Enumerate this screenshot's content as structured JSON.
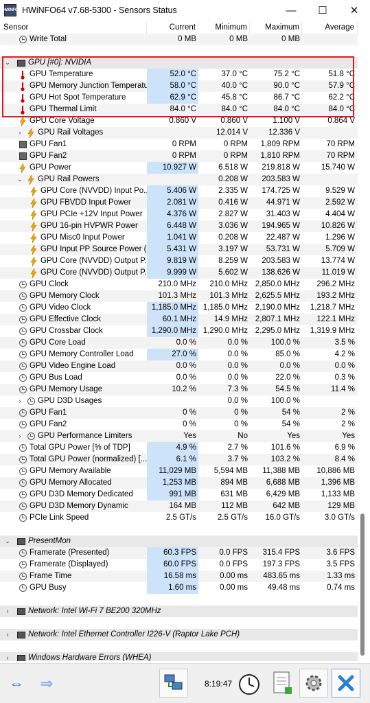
{
  "window": {
    "title": "HWiNFO64 v7.68-5300 - Sensors Status",
    "app_icon_text": "HWiNFO",
    "minimize": "—",
    "maximize": "☐",
    "close": "✕"
  },
  "columns": [
    "Sensor",
    "Current",
    "Minimum",
    "Maximum",
    "Average"
  ],
  "rows": [
    {
      "type": "sensor",
      "indent": 1,
      "icon": "clock",
      "name": "Write Total",
      "cur": "0 MB",
      "min": "0 MB",
      "max": "0 MB",
      "avg": ""
    },
    {
      "type": "blank"
    },
    {
      "type": "group",
      "expanded": true,
      "name": "GPU [#0]: NVIDIA"
    },
    {
      "type": "sensor",
      "indent": 1,
      "icon": "therm",
      "name": "GPU Temperature",
      "cur": "52.0 °C",
      "min": "37.0 °C",
      "max": "75.2 °C",
      "avg": "51.8 °C",
      "hl": true
    },
    {
      "type": "sensor",
      "indent": 1,
      "icon": "therm",
      "name": "GPU Memory Junction Temperature",
      "cur": "58.0 °C",
      "min": "40.0 °C",
      "max": "90.0 °C",
      "avg": "57.9 °C",
      "hl": true
    },
    {
      "type": "sensor",
      "indent": 1,
      "icon": "therm",
      "name": "GPU Hot Spot Temperature",
      "cur": "62.9 °C",
      "min": "45.8 °C",
      "max": "86.7 °C",
      "avg": "62.2 °C",
      "hl": true
    },
    {
      "type": "sensor",
      "indent": 1,
      "icon": "therm",
      "name": "GPU Thermal Limit",
      "cur": "84.0 °C",
      "min": "84.0 °C",
      "max": "84.0 °C",
      "avg": "84.0 °C"
    },
    {
      "type": "sensor",
      "indent": 1,
      "icon": "bolt",
      "name": "GPU Core Voltage",
      "cur": "0.860 V",
      "min": "0.860 V",
      "max": "1.100 V",
      "avg": "0.864 V"
    },
    {
      "type": "sensor",
      "indent": 1,
      "icon": "bolt",
      "name": "GPU Rail Voltages",
      "cur": "",
      "min": "12.014 V",
      "max": "12.336 V",
      "avg": "",
      "expander": "›"
    },
    {
      "type": "sensor",
      "indent": 1,
      "icon": "fan",
      "name": "GPU Fan1",
      "cur": "0 RPM",
      "min": "0 RPM",
      "max": "1,809 RPM",
      "avg": "70 RPM"
    },
    {
      "type": "sensor",
      "indent": 1,
      "icon": "fan",
      "name": "GPU Fan2",
      "cur": "0 RPM",
      "min": "0 RPM",
      "max": "1,810 RPM",
      "avg": "70 RPM"
    },
    {
      "type": "sensor",
      "indent": 1,
      "icon": "bolt",
      "name": "GPU Power",
      "cur": "10.927 W",
      "min": "6.518 W",
      "max": "219.818 W",
      "avg": "15.740 W",
      "hl": true
    },
    {
      "type": "sensor",
      "indent": 1,
      "icon": "bolt",
      "name": "GPU Rail Powers",
      "cur": "",
      "min": "0.208 W",
      "max": "203.583 W",
      "avg": "",
      "expander": "⌄"
    },
    {
      "type": "sensor",
      "indent": 2,
      "icon": "bolt",
      "name": "GPU Core (NVVDD) Input Po...",
      "cur": "5.406 W",
      "min": "2.335 W",
      "max": "174.725 W",
      "avg": "9.529 W",
      "hl": true
    },
    {
      "type": "sensor",
      "indent": 2,
      "icon": "bolt",
      "name": "GPU FBVDD Input Power",
      "cur": "2.081 W",
      "min": "0.416 W",
      "max": "44.971 W",
      "avg": "2.592 W",
      "hl": true
    },
    {
      "type": "sensor",
      "indent": 2,
      "icon": "bolt",
      "name": "GPU PCIe +12V Input Power",
      "cur": "4.376 W",
      "min": "2.827 W",
      "max": "31.403 W",
      "avg": "4.404 W",
      "hl": true
    },
    {
      "type": "sensor",
      "indent": 2,
      "icon": "bolt",
      "name": "GPU 16-pin HVPWR Power",
      "cur": "6.448 W",
      "min": "3.036 W",
      "max": "194.965 W",
      "avg": "10.826 W",
      "hl": true
    },
    {
      "type": "sensor",
      "indent": 2,
      "icon": "bolt",
      "name": "GPU Misc0 Input Power",
      "cur": "1.041 W",
      "min": "0.208 W",
      "max": "22.487 W",
      "avg": "1.296 W",
      "hl": true
    },
    {
      "type": "sensor",
      "indent": 2,
      "icon": "bolt",
      "name": "GPU Input PP Source Power (...",
      "cur": "5.431 W",
      "min": "3.197 W",
      "max": "53.731 W",
      "avg": "5.709 W",
      "hl": true
    },
    {
      "type": "sensor",
      "indent": 2,
      "icon": "bolt",
      "name": "GPU Core (NVVDD) Output P...",
      "cur": "9.819 W",
      "min": "8.259 W",
      "max": "203.583 W",
      "avg": "13.774 W",
      "hl": true
    },
    {
      "type": "sensor",
      "indent": 2,
      "icon": "bolt",
      "name": "GPU Core (NVVDD) Output P...",
      "cur": "9.999 W",
      "min": "5.602 W",
      "max": "138.626 W",
      "avg": "11.019 W",
      "hl": true
    },
    {
      "type": "sensor",
      "indent": 1,
      "icon": "clock",
      "name": "GPU Clock",
      "cur": "210.0 MHz",
      "min": "210.0 MHz",
      "max": "2,850.0 MHz",
      "avg": "296.2 MHz"
    },
    {
      "type": "sensor",
      "indent": 1,
      "icon": "clock",
      "name": "GPU Memory Clock",
      "cur": "101.3 MHz",
      "min": "101.3 MHz",
      "max": "2,625.5 MHz",
      "avg": "193.2 MHz"
    },
    {
      "type": "sensor",
      "indent": 1,
      "icon": "clock",
      "name": "GPU Video Clock",
      "cur": "1,185.0 MHz",
      "min": "1,185.0 MHz",
      "max": "2,190.0 MHz",
      "avg": "1,218.7 MHz",
      "hl": true
    },
    {
      "type": "sensor",
      "indent": 1,
      "icon": "clock",
      "name": "GPU Effective Clock",
      "cur": "60.1 MHz",
      "min": "14.9 MHz",
      "max": "2,807.1 MHz",
      "avg": "122.1 MHz",
      "hl": true
    },
    {
      "type": "sensor",
      "indent": 1,
      "icon": "clock",
      "name": "GPU Crossbar Clock",
      "cur": "1,290.0 MHz",
      "min": "1,290.0 MHz",
      "max": "2,295.0 MHz",
      "avg": "1,319.9 MHz",
      "hl": true
    },
    {
      "type": "sensor",
      "indent": 1,
      "icon": "clock",
      "name": "GPU Core Load",
      "cur": "0.0 %",
      "min": "0.0 %",
      "max": "100.0 %",
      "avg": "3.5 %"
    },
    {
      "type": "sensor",
      "indent": 1,
      "icon": "clock",
      "name": "GPU Memory Controller Load",
      "cur": "27.0 %",
      "min": "0.0 %",
      "max": "85.0 %",
      "avg": "4.2 %",
      "hl": true
    },
    {
      "type": "sensor",
      "indent": 1,
      "icon": "clock",
      "name": "GPU Video Engine Load",
      "cur": "0.0 %",
      "min": "0.0 %",
      "max": "0.0 %",
      "avg": "0.0 %"
    },
    {
      "type": "sensor",
      "indent": 1,
      "icon": "clock",
      "name": "GPU Bus Load",
      "cur": "0.0 %",
      "min": "0.0 %",
      "max": "22.0 %",
      "avg": "0.3 %"
    },
    {
      "type": "sensor",
      "indent": 1,
      "icon": "clock",
      "name": "GPU Memory Usage",
      "cur": "10.2 %",
      "min": "7.3 %",
      "max": "54.5 %",
      "avg": "11.4 %"
    },
    {
      "type": "sensor",
      "indent": 1,
      "icon": "clock",
      "name": "GPU D3D Usages",
      "cur": "",
      "min": "0.0 %",
      "max": "100.0 %",
      "avg": "",
      "expander": "›"
    },
    {
      "type": "sensor",
      "indent": 1,
      "icon": "clock",
      "name": "GPU Fan1",
      "cur": "0 %",
      "min": "0 %",
      "max": "54 %",
      "avg": "2 %"
    },
    {
      "type": "sensor",
      "indent": 1,
      "icon": "clock",
      "name": "GPU Fan2",
      "cur": "0 %",
      "min": "0 %",
      "max": "54 %",
      "avg": "2 %"
    },
    {
      "type": "sensor",
      "indent": 1,
      "icon": "clock",
      "name": "GPU Performance Limiters",
      "cur": "Yes",
      "min": "No",
      "max": "Yes",
      "avg": "Yes",
      "expander": "›"
    },
    {
      "type": "sensor",
      "indent": 1,
      "icon": "clock",
      "name": "Total GPU Power [% of TDP]",
      "cur": "4.9 %",
      "min": "2.7 %",
      "max": "101.6 %",
      "avg": "6.9 %",
      "hl": true
    },
    {
      "type": "sensor",
      "indent": 1,
      "icon": "clock",
      "name": "Total GPU Power (normalized) [...",
      "cur": "6.1 %",
      "min": "3.7 %",
      "max": "103.2 %",
      "avg": "8.4 %",
      "hl": true
    },
    {
      "type": "sensor",
      "indent": 1,
      "icon": "clock",
      "name": "GPU Memory Available",
      "cur": "11,029 MB",
      "min": "5,594 MB",
      "max": "11,388 MB",
      "avg": "10,886 MB",
      "hl": true
    },
    {
      "type": "sensor",
      "indent": 1,
      "icon": "clock",
      "name": "GPU Memory Allocated",
      "cur": "1,253 MB",
      "min": "894 MB",
      "max": "6,688 MB",
      "avg": "1,396 MB",
      "hl": true
    },
    {
      "type": "sensor",
      "indent": 1,
      "icon": "clock",
      "name": "GPU D3D Memory Dedicated",
      "cur": "991 MB",
      "min": "631 MB",
      "max": "6,429 MB",
      "avg": "1,133 MB",
      "hl": true
    },
    {
      "type": "sensor",
      "indent": 1,
      "icon": "clock",
      "name": "GPU D3D Memory Dynamic",
      "cur": "164 MB",
      "min": "112 MB",
      "max": "642 MB",
      "avg": "129 MB"
    },
    {
      "type": "sensor",
      "indent": 1,
      "icon": "clock",
      "name": "PCIe Link Speed",
      "cur": "2.5 GT/s",
      "min": "2.5 GT/s",
      "max": "16.0 GT/s",
      "avg": "3.0 GT/s"
    },
    {
      "type": "blank"
    },
    {
      "type": "group",
      "expanded": true,
      "name": "PresentMon"
    },
    {
      "type": "sensor",
      "indent": 1,
      "icon": "clock",
      "name": "Framerate (Presented)",
      "cur": "60.3 FPS",
      "min": "0.0 FPS",
      "max": "315.4 FPS",
      "avg": "3.6 FPS",
      "hl": true
    },
    {
      "type": "sensor",
      "indent": 1,
      "icon": "clock",
      "name": "Framerate (Displayed)",
      "cur": "60.0 FPS",
      "min": "0.0 FPS",
      "max": "197.3 FPS",
      "avg": "3.5 FPS",
      "hl": true
    },
    {
      "type": "sensor",
      "indent": 1,
      "icon": "clock",
      "name": "Frame Time",
      "cur": "16.58 ms",
      "min": "0.00 ms",
      "max": "483.65 ms",
      "avg": "1.33 ms",
      "hl": true
    },
    {
      "type": "sensor",
      "indent": 1,
      "icon": "clock",
      "name": "GPU Busy",
      "cur": "1.60 ms",
      "min": "0.00 ms",
      "max": "49.48 ms",
      "avg": "0.74 ms",
      "hl": true
    },
    {
      "type": "blank"
    },
    {
      "type": "group",
      "expanded": false,
      "name": "Network: Intel Wi-Fi 7 BE200 320MHz"
    },
    {
      "type": "blank"
    },
    {
      "type": "group",
      "expanded": false,
      "name": "Network: Intel Ethernet Controller I226-V (Raptor Lake PCH)"
    },
    {
      "type": "blank"
    },
    {
      "type": "group",
      "expanded": false,
      "name": "Windows Hardware Errors (WHEA)"
    }
  ],
  "bottom": {
    "time": "8:19:47"
  },
  "colors": {
    "highlight": "#cde3fa",
    "selection_box": "#e0191f",
    "arrow_blue": "#1e6bd6"
  }
}
